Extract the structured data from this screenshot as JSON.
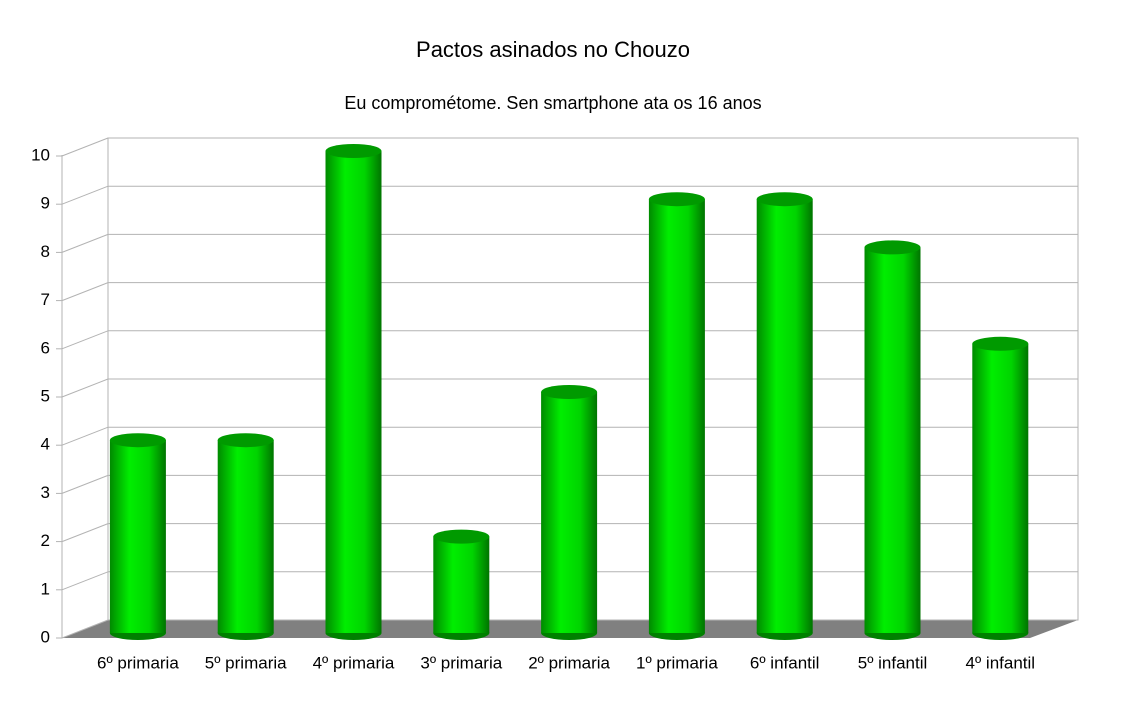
{
  "chart_data": {
    "type": "bar",
    "title": "Pactos asinados no Chouzo",
    "subtitle": "Eu comprométome. Sen smartphone ata os 16 anos",
    "categories": [
      "6º primaria",
      "5º primaria",
      "4º primaria",
      "3º primaria",
      "2º primaria",
      "1º primaria",
      "6º infantil",
      "5º infantil",
      "4º infantil"
    ],
    "values": [
      4,
      4,
      10,
      2,
      5,
      9,
      9,
      8,
      6
    ],
    "color": "#00ee00",
    "ylim": [
      0,
      10
    ],
    "yticks": [
      0,
      1,
      2,
      3,
      4,
      5,
      6,
      7,
      8,
      9,
      10
    ],
    "grid": true
  }
}
